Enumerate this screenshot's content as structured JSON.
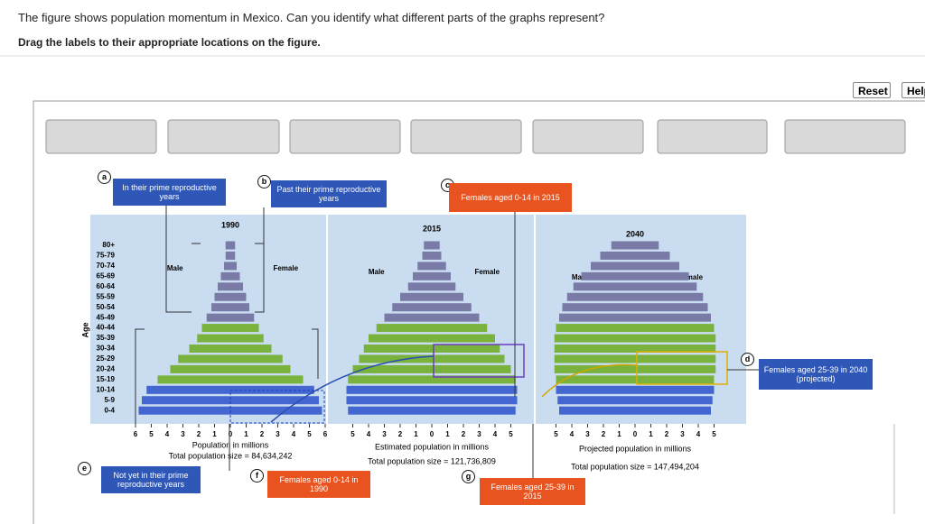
{
  "header": {
    "question": "The figure shows population momentum in Mexico. Can you identify what different parts of the graphs represent?",
    "instruction": "Drag the labels to their appropriate locations on the figure."
  },
  "buttons": [
    "Reset",
    "Help"
  ],
  "figure": {
    "age_label": "Age",
    "ages": [
      "80+",
      "75-79",
      "70-74",
      "65-69",
      "60-64",
      "55-59",
      "50-54",
      "45-49",
      "40-44",
      "35-39",
      "30-34",
      "25-29",
      "20-24",
      "15-19",
      "10-14",
      "5-9",
      "0-4"
    ],
    "colors": [
      "#7a7aa6",
      "#7a7aa6",
      "#7a7aa6",
      "#7a7aa6",
      "#7a7aa6",
      "#7a7aa6",
      "#7a7aa6",
      "#7a7aa6",
      "#79b23c",
      "#79b23c",
      "#79b23c",
      "#79b23c",
      "#79b23c",
      "#79b23c",
      "#4466d0",
      "#4466d0",
      "#4466d0"
    ],
    "pyramids": [
      {
        "year": "1990",
        "male_label": "Male",
        "female_label": "Female",
        "xlabel": "Population in millions",
        "total": "Total population size = 84,634,242",
        "xlim": [
          -6,
          6
        ],
        "xticks": [
          {
            "value": -6,
            "label": "6"
          },
          {
            "value": -5,
            "label": "5"
          },
          {
            "value": -4,
            "label": "4"
          },
          {
            "value": -3,
            "label": "3"
          },
          {
            "value": -2,
            "label": "2"
          },
          {
            "value": -1,
            "label": "1"
          },
          0,
          1,
          2,
          3,
          4,
          5,
          6
        ],
        "male": [
          0.3,
          0.3,
          0.4,
          0.6,
          0.8,
          1.0,
          1.2,
          1.5,
          1.8,
          2.1,
          2.6,
          3.3,
          3.8,
          4.6,
          5.3,
          5.6,
          5.8
        ],
        "female": [
          0.3,
          0.3,
          0.4,
          0.6,
          0.8,
          1.0,
          1.2,
          1.5,
          1.8,
          2.1,
          2.6,
          3.3,
          3.8,
          4.6,
          5.3,
          5.6,
          5.8
        ]
      },
      {
        "year": "2015",
        "male_label": "Male",
        "female_label": "Female",
        "xlabel": "Estimated population in millions",
        "total": "Total population size = 121,736,809",
        "xlim": [
          -5,
          5
        ],
        "xticks": [
          {
            "value": -5,
            "label": "5"
          },
          {
            "value": -4,
            "label": "4"
          },
          {
            "value": -3,
            "label": "3"
          },
          {
            "value": -2,
            "label": "2"
          },
          {
            "value": -1,
            "label": "1"
          },
          0,
          1,
          2,
          3,
          4,
          5
        ],
        "male": [
          0.5,
          0.6,
          0.9,
          1.2,
          1.5,
          2.0,
          2.5,
          3.0,
          3.5,
          4.0,
          4.3,
          4.6,
          5.0,
          5.3,
          5.4,
          5.4,
          5.3
        ],
        "female": [
          0.5,
          0.6,
          0.9,
          1.2,
          1.5,
          2.0,
          2.5,
          3.0,
          3.5,
          4.0,
          4.3,
          4.6,
          5.0,
          5.3,
          5.4,
          5.4,
          5.3
        ]
      },
      {
        "year": "2040",
        "male_label": "Male",
        "female_label": "Female",
        "xlabel": "Projected population in millions",
        "total": "Total population size = 147,494,204",
        "xlim": [
          -5,
          5
        ],
        "xticks": [
          {
            "value": -5,
            "label": "5"
          },
          {
            "value": -4,
            "label": "4"
          },
          {
            "value": -3,
            "label": "3"
          },
          {
            "value": -2,
            "label": "2"
          },
          {
            "value": -1,
            "label": "1"
          },
          0,
          1,
          2,
          3,
          4,
          5
        ],
        "male": [
          1.5,
          2.2,
          2.8,
          3.4,
          3.9,
          4.3,
          4.6,
          4.8,
          5.0,
          5.1,
          5.1,
          5.1,
          5.1,
          5.0,
          5.0,
          4.9,
          4.8
        ],
        "female": [
          1.5,
          2.2,
          2.8,
          3.4,
          3.9,
          4.3,
          4.6,
          4.8,
          5.0,
          5.1,
          5.1,
          5.1,
          5.1,
          5.0,
          5.0,
          4.9,
          4.8
        ]
      }
    ]
  },
  "labels": [
    {
      "letter": "a",
      "text": "In their prime reproductive years"
    },
    {
      "letter": "b",
      "text": "Past their prime reproductive years"
    },
    {
      "letter": "c",
      "text": "Females aged 0-14 in 2015"
    },
    {
      "letter": "d",
      "text": "Females aged 25-39 in 2040 (projected)"
    },
    {
      "letter": "e",
      "text": "Not yet in their prime reproductive years"
    },
    {
      "letter": "f",
      "text": "Females aged 0-14 in 1990"
    },
    {
      "letter": "g",
      "text": "Females aged 25-39 in 2015"
    }
  ]
}
